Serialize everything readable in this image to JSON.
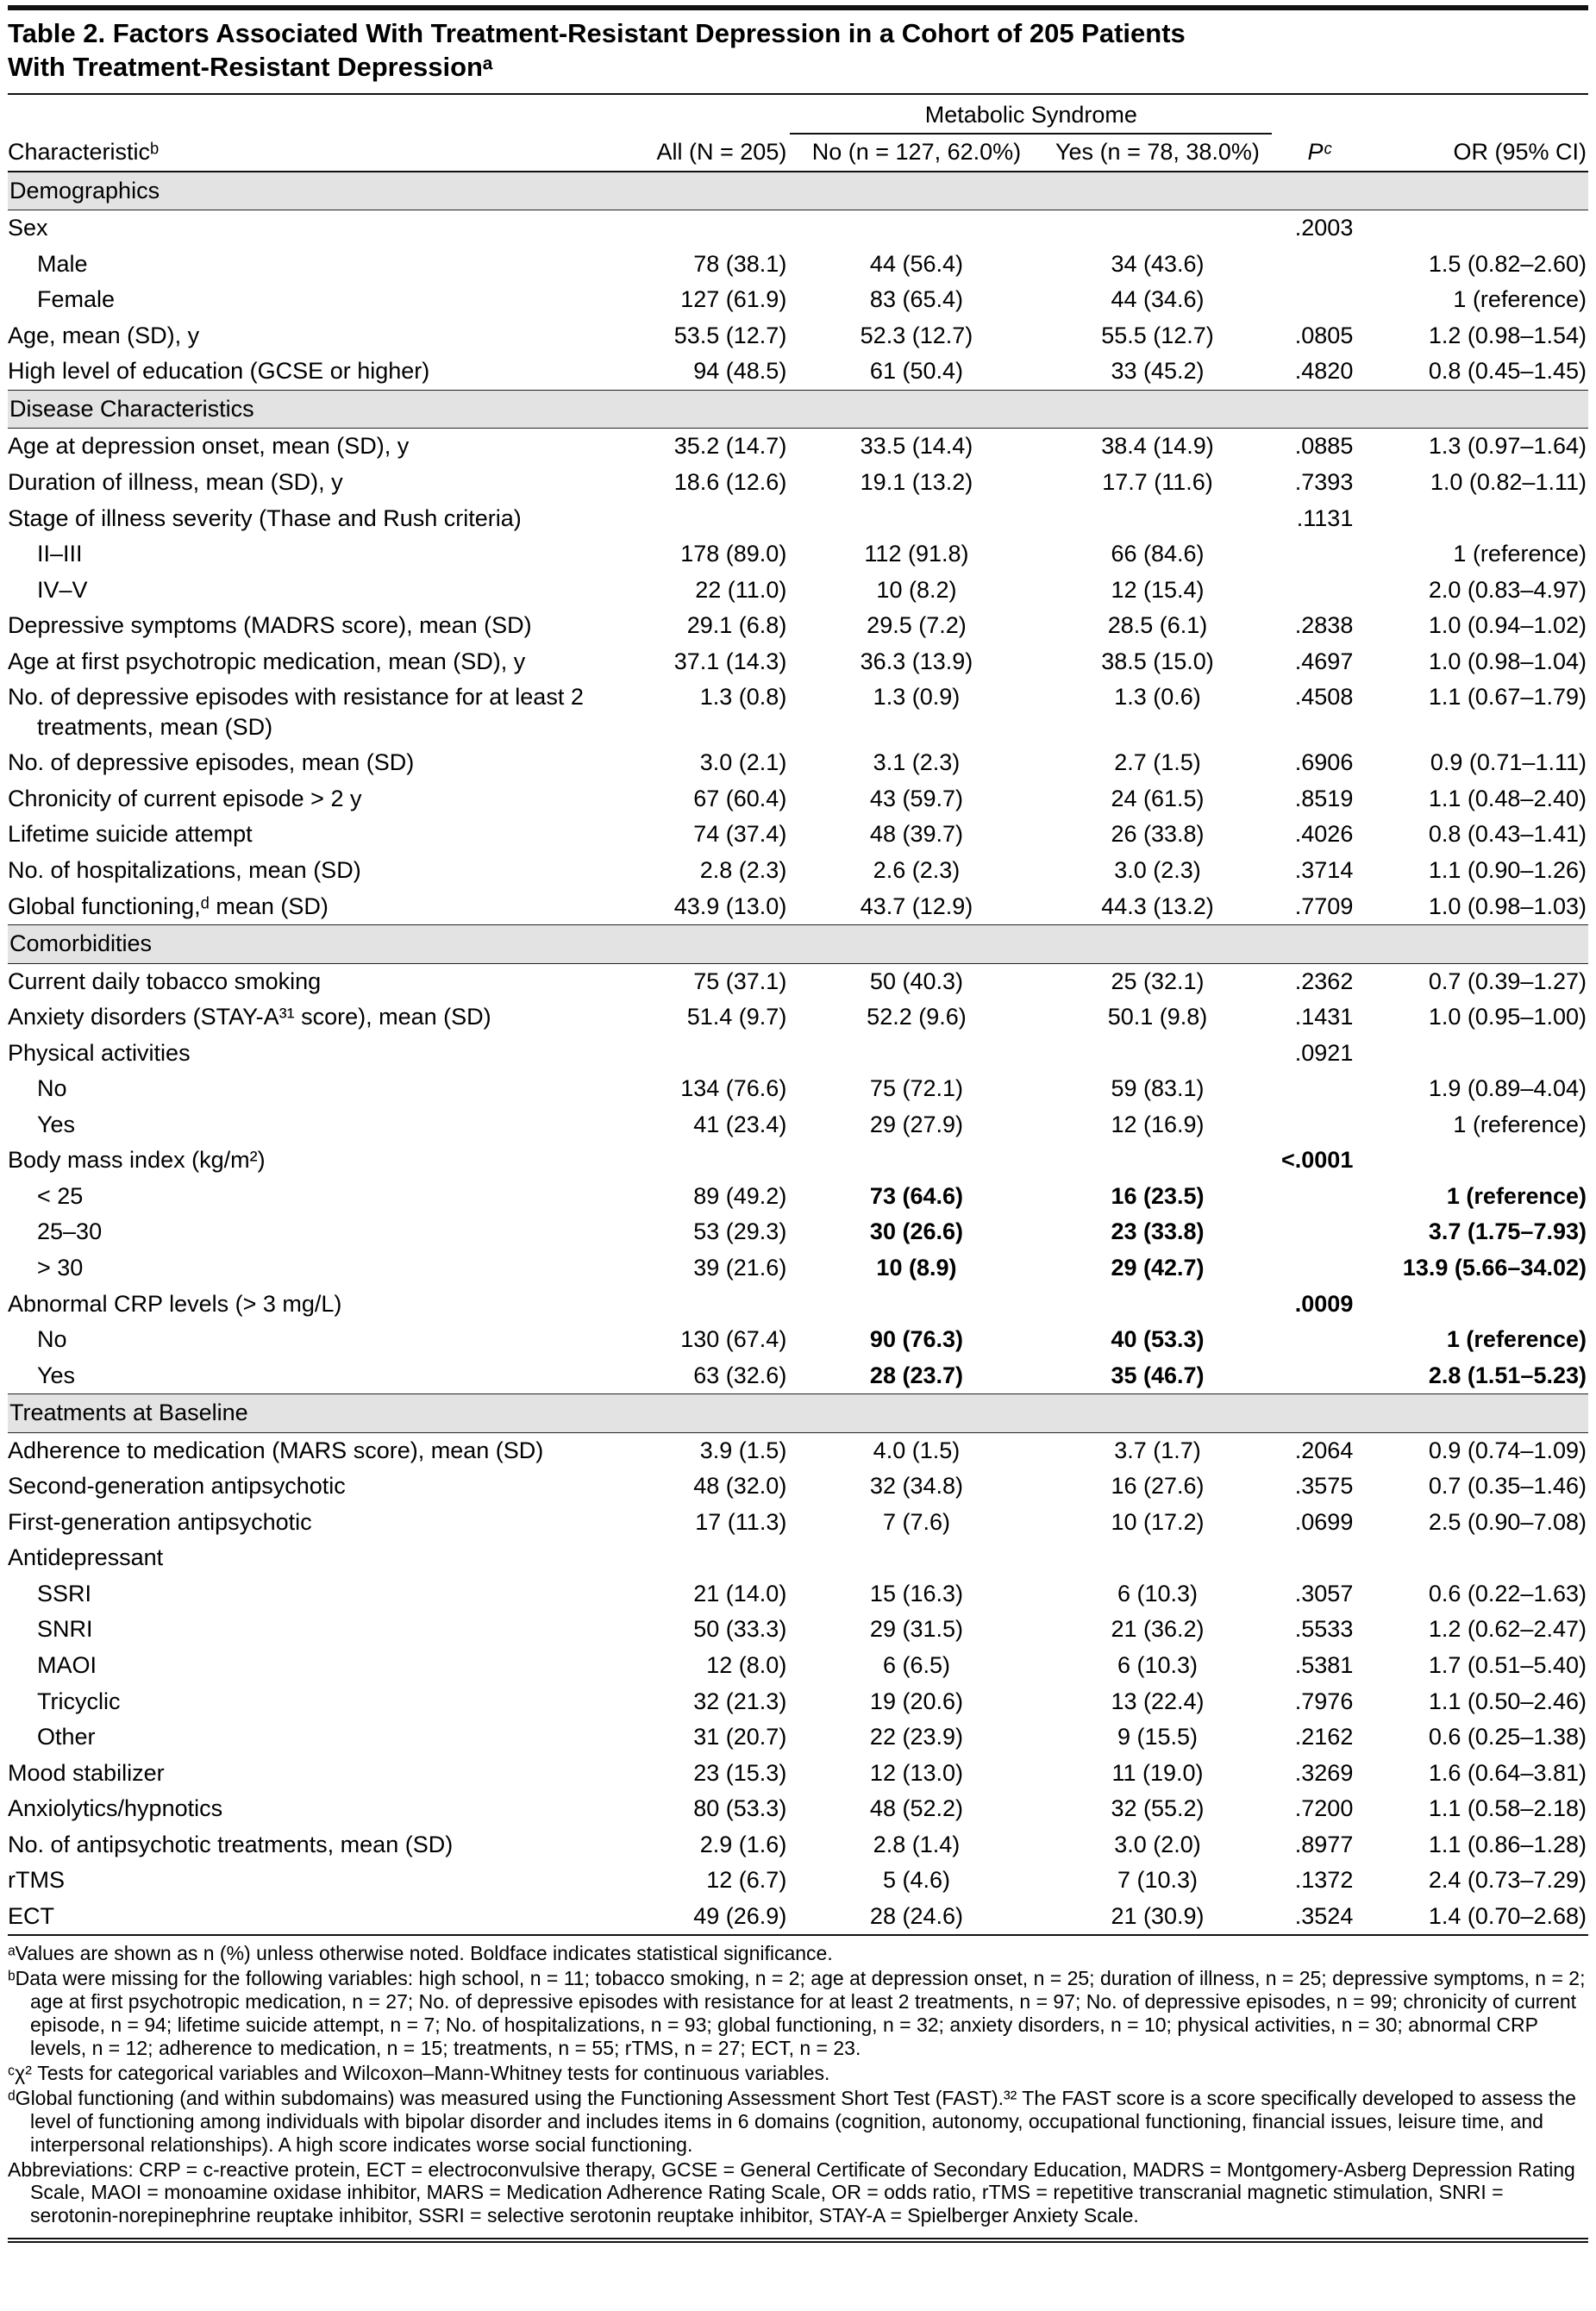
{
  "title": {
    "line1": "Table 2. Factors Associated With Treatment-Resistant Depression in a Cohort of 205 Patients",
    "line2": "With Treatment-Resistant Depressionᵃ"
  },
  "table": {
    "span_header": "Metabolic Syndrome",
    "columns": [
      "Characteristicᵇ",
      "All (N = 205)",
      "No (n = 127, 62.0%)",
      "Yes (n = 78, 38.0%)",
      "Pᶜ",
      "OR (95% CI)"
    ],
    "rows": [
      {
        "type": "section",
        "label": "Demographics"
      },
      {
        "type": "data",
        "label": "Sex",
        "p": ".2003"
      },
      {
        "type": "data",
        "label": "Male",
        "indent": true,
        "all": "78 (38.1)",
        "no": "44 (56.4)",
        "yes": "34 (43.6)",
        "or": "1.5 (0.82–2.60)"
      },
      {
        "type": "data",
        "label": "Female",
        "indent": true,
        "all": "127 (61.9)",
        "no": "83 (65.4)",
        "yes": "44 (34.6)",
        "or": "1 (reference)"
      },
      {
        "type": "data",
        "label": "Age, mean (SD), y",
        "all": "53.5 (12.7)",
        "no": "52.3 (12.7)",
        "yes": "55.5 (12.7)",
        "p": ".0805",
        "or": "1.2 (0.98–1.54)"
      },
      {
        "type": "data",
        "label": "High level of education (GCSE or higher)",
        "all": "94 (48.5)",
        "no": "61 (50.4)",
        "yes": "33 (45.2)",
        "p": ".4820",
        "or": "0.8 (0.45–1.45)"
      },
      {
        "type": "section",
        "label": "Disease Characteristics"
      },
      {
        "type": "data",
        "label": "Age at depression onset, mean (SD), y",
        "all": "35.2 (14.7)",
        "no": "33.5 (14.4)",
        "yes": "38.4 (14.9)",
        "p": ".0885",
        "or": "1.3 (0.97–1.64)"
      },
      {
        "type": "data",
        "label": "Duration of illness, mean (SD), y",
        "all": "18.6 (12.6)",
        "no": "19.1 (13.2)",
        "yes": "17.7 (11.6)",
        "p": ".7393",
        "or": "1.0 (0.82–1.11)"
      },
      {
        "type": "data",
        "label": "Stage of illness severity (Thase and Rush criteria)",
        "p": ".1131"
      },
      {
        "type": "data",
        "label": "II–III",
        "indent": true,
        "all": "178 (89.0)",
        "no": "112 (91.8)",
        "yes": "66 (84.6)",
        "or": "1 (reference)"
      },
      {
        "type": "data",
        "label": "IV–V",
        "indent": true,
        "all": "22 (11.0)",
        "no": "10 (8.2)",
        "yes": "12 (15.4)",
        "or": "2.0 (0.83–4.97)"
      },
      {
        "type": "data",
        "label": "Depressive symptoms (MADRS score), mean (SD)",
        "all": "29.1 (6.8)",
        "no": "29.5 (7.2)",
        "yes": "28.5 (6.1)",
        "p": ".2838",
        "or": "1.0 (0.94–1.02)"
      },
      {
        "type": "data",
        "label": "Age at first psychotropic medication, mean (SD), y",
        "all": "37.1 (14.3)",
        "no": "36.3 (13.9)",
        "yes": "38.5 (15.0)",
        "p": ".4697",
        "or": "1.0 (0.98–1.04)"
      },
      {
        "type": "data",
        "label": "No. of depressive episodes with resistance for at least 2 treatments, mean (SD)",
        "all": "1.3 (0.8)",
        "no": "1.3 (0.9)",
        "yes": "1.3 (0.6)",
        "p": ".4508",
        "or": "1.1 (0.67–1.79)"
      },
      {
        "type": "data",
        "label": "No. of depressive episodes, mean (SD)",
        "all": "3.0 (2.1)",
        "no": "3.1 (2.3)",
        "yes": "2.7 (1.5)",
        "p": ".6906",
        "or": "0.9 (0.71–1.11)"
      },
      {
        "type": "data",
        "label": "Chronicity of current episode > 2 y",
        "all": "67 (60.4)",
        "no": "43 (59.7)",
        "yes": "24 (61.5)",
        "p": ".8519",
        "or": "1.1 (0.48–2.40)"
      },
      {
        "type": "data",
        "label": "Lifetime suicide attempt",
        "all": "74 (37.4)",
        "no": "48 (39.7)",
        "yes": "26 (33.8)",
        "p": ".4026",
        "or": "0.8 (0.43–1.41)"
      },
      {
        "type": "data",
        "label": "No. of hospitalizations, mean (SD)",
        "all": "2.8 (2.3)",
        "no": "2.6 (2.3)",
        "yes": "3.0 (2.3)",
        "p": ".3714",
        "or": "1.1 (0.90–1.26)"
      },
      {
        "type": "data",
        "label": "Global functioning,ᵈ mean (SD)",
        "all": "43.9 (13.0)",
        "no": "43.7 (12.9)",
        "yes": "44.3 (13.2)",
        "p": ".7709",
        "or": "1.0 (0.98–1.03)"
      },
      {
        "type": "section",
        "label": "Comorbidities"
      },
      {
        "type": "data",
        "label": "Current daily tobacco smoking",
        "all": "75 (37.1)",
        "no": "50 (40.3)",
        "yes": "25 (32.1)",
        "p": ".2362",
        "or": "0.7 (0.39–1.27)"
      },
      {
        "type": "data",
        "label": "Anxiety disorders (STAY-A³¹ score), mean (SD)",
        "all": "51.4 (9.7)",
        "no": "52.2 (9.6)",
        "yes": "50.1 (9.8)",
        "p": ".1431",
        "or": "1.0 (0.95–1.00)"
      },
      {
        "type": "data",
        "label": "Physical activities",
        "p": ".0921"
      },
      {
        "type": "data",
        "label": "No",
        "indent": true,
        "all": "134 (76.6)",
        "no": "75 (72.1)",
        "yes": "59 (83.1)",
        "or": "1.9 (0.89–4.04)"
      },
      {
        "type": "data",
        "label": "Yes",
        "indent": true,
        "all": "41 (23.4)",
        "no": "29 (27.9)",
        "yes": "12 (16.9)",
        "or": "1 (reference)"
      },
      {
        "type": "data",
        "label": "Body mass index (kg/m²)",
        "p": "<.0001",
        "bold_p": true
      },
      {
        "type": "data",
        "label": "< 25",
        "indent": true,
        "all": "89 (49.2)",
        "no": "73 (64.6)",
        "yes": "16 (23.5)",
        "or": "1 (reference)",
        "bold_vals": true
      },
      {
        "type": "data",
        "label": "25–30",
        "indent": true,
        "all": "53 (29.3)",
        "no": "30 (26.6)",
        "yes": "23 (33.8)",
        "or": "3.7 (1.75–7.93)",
        "bold_vals": true
      },
      {
        "type": "data",
        "label": "> 30",
        "indent": true,
        "all": "39 (21.6)",
        "no": "10 (8.9)",
        "yes": "29 (42.7)",
        "or": "13.9 (5.66–34.02)",
        "bold_vals": true
      },
      {
        "type": "data",
        "label": "Abnormal CRP levels (> 3 mg/L)",
        "p": ".0009",
        "bold_p": true
      },
      {
        "type": "data",
        "label": "No",
        "indent": true,
        "all": "130 (67.4)",
        "no": "90 (76.3)",
        "yes": "40 (53.3)",
        "or": "1 (reference)",
        "bold_vals": true
      },
      {
        "type": "data",
        "label": "Yes",
        "indent": true,
        "all": "63 (32.6)",
        "no": "28 (23.7)",
        "yes": "35 (46.7)",
        "or": "2.8 (1.51–5.23)",
        "bold_vals": true
      },
      {
        "type": "section",
        "label": "Treatments at Baseline"
      },
      {
        "type": "data",
        "label": "Adherence to medication (MARS score), mean (SD)",
        "all": "3.9 (1.5)",
        "no": "4.0 (1.5)",
        "yes": "3.7 (1.7)",
        "p": ".2064",
        "or": "0.9 (0.74–1.09)"
      },
      {
        "type": "data",
        "label": "Second-generation antipsychotic",
        "all": "48 (32.0)",
        "no": "32 (34.8)",
        "yes": "16 (27.6)",
        "p": ".3575",
        "or": "0.7 (0.35–1.46)"
      },
      {
        "type": "data",
        "label": "First-generation antipsychotic",
        "all": "17 (11.3)",
        "no": "7 (7.6)",
        "yes": "10 (17.2)",
        "p": ".0699",
        "or": "2.5 (0.90–7.08)"
      },
      {
        "type": "data",
        "label": "Antidepressant"
      },
      {
        "type": "data",
        "label": "SSRI",
        "indent": true,
        "all": "21 (14.0)",
        "no": "15 (16.3)",
        "yes": "6 (10.3)",
        "p": ".3057",
        "or": "0.6 (0.22–1.63)"
      },
      {
        "type": "data",
        "label": "SNRI",
        "indent": true,
        "all": "50 (33.3)",
        "no": "29 (31.5)",
        "yes": "21 (36.2)",
        "p": ".5533",
        "or": "1.2 (0.62–2.47)"
      },
      {
        "type": "data",
        "label": "MAOI",
        "indent": true,
        "all": "12 (8.0)",
        "no": "6 (6.5)",
        "yes": "6 (10.3)",
        "p": ".5381",
        "or": "1.7 (0.51–5.40)"
      },
      {
        "type": "data",
        "label": "Tricyclic",
        "indent": true,
        "all": "32 (21.3)",
        "no": "19 (20.6)",
        "yes": "13 (22.4)",
        "p": ".7976",
        "or": "1.1 (0.50–2.46)"
      },
      {
        "type": "data",
        "label": "Other",
        "indent": true,
        "all": "31 (20.7)",
        "no": "22 (23.9)",
        "yes": "9 (15.5)",
        "p": ".2162",
        "or": "0.6 (0.25–1.38)"
      },
      {
        "type": "data",
        "label": "Mood stabilizer",
        "all": "23 (15.3)",
        "no": "12 (13.0)",
        "yes": "11 (19.0)",
        "p": ".3269",
        "or": "1.6 (0.64–3.81)"
      },
      {
        "type": "data",
        "label": "Anxiolytics/hypnotics",
        "all": "80 (53.3)",
        "no": "48 (52.2)",
        "yes": "32 (55.2)",
        "p": ".7200",
        "or": "1.1 (0.58–2.18)"
      },
      {
        "type": "data",
        "label": "No. of antipsychotic treatments, mean (SD)",
        "all": "2.9 (1.6)",
        "no": "2.8 (1.4)",
        "yes": "3.0 (2.0)",
        "p": ".8977",
        "or": "1.1 (0.86–1.28)"
      },
      {
        "type": "data",
        "label": "rTMS",
        "all": "12 (6.7)",
        "no": "5 (4.6)",
        "yes": "7 (10.3)",
        "p": ".1372",
        "or": "2.4 (0.73–7.29)"
      },
      {
        "type": "data",
        "label": "ECT",
        "all": "49 (26.9)",
        "no": "28 (24.6)",
        "yes": "21 (30.9)",
        "p": ".3524",
        "or": "1.4 (0.70–2.68)"
      }
    ]
  },
  "footnotes": [
    "ᵃValues are shown as n (%) unless otherwise noted. Boldface indicates statistical significance.",
    "ᵇData were missing for the following variables: high school, n = 11; tobacco smoking, n = 2; age at depression onset, n = 25; duration of illness, n = 25; depressive symptoms, n = 2; age at first psychotropic medication, n = 27; No. of depressive episodes with resistance for at least 2 treatments, n = 97; No. of depressive episodes, n = 99; chronicity of current episode, n = 94; lifetime suicide attempt, n = 7; No. of hospitalizations, n = 93; global functioning, n = 32; anxiety disorders, n = 10; physical activities, n = 30; abnormal CRP levels, n = 12; adherence to medication, n = 15; treatments, n = 55; rTMS, n = 27; ECT, n = 23.",
    "ᶜχ² Tests for categorical variables and Wilcoxon–Mann-Whitney tests for continuous variables.",
    "ᵈGlobal functioning (and within subdomains) was measured using the Functioning Assessment Short Test (FAST).³² The FAST score is a score specifically developed to assess the level of functioning among individuals with bipolar disorder and includes items in 6 domains (cognition, autonomy, occupational functioning, financial issues, leisure time, and interpersonal relationships). A high score indicates worse social functioning.",
    "Abbreviations: CRP = c-reactive protein, ECT = electroconvulsive therapy, GCSE = General Certificate of Secondary Education, MADRS = Montgomery-Asberg Depression Rating Scale, MAOI = monoamine oxidase inhibitor, MARS = Medication Adherence Rating Scale, OR = odds ratio, rTMS = repetitive transcranial magnetic stimulation, SNRI = serotonin-norepinephrine reuptake inhibitor, SSRI = selective serotonin reuptake inhibitor, STAY-A = Spielberger Anxiety Scale."
  ]
}
